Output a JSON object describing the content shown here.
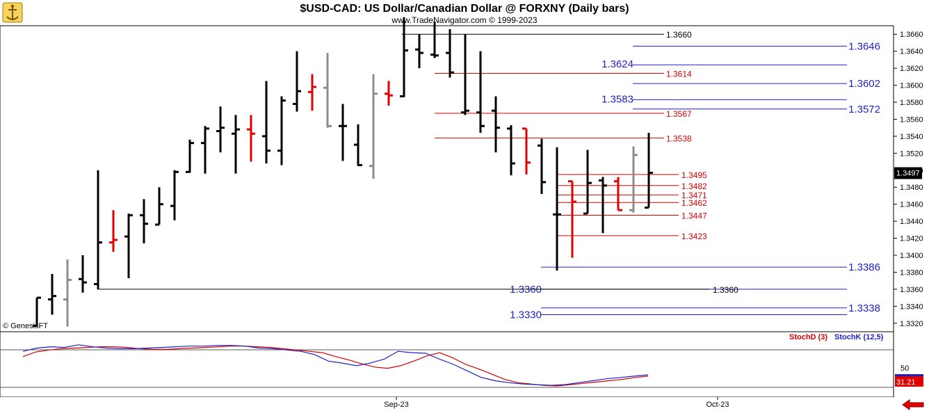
{
  "header": {
    "title": "$USD-CAD:  US Dollar/Canadian Dollar @ FORXNY  (Daily bars)",
    "subtitle": "www.TradeNavigator.com © 1999-2023",
    "watermark": "© GenesisFT"
  },
  "chart_data": [
    {
      "type": "ohlc",
      "title": "$USD-CAD:  US Dollar/Canadian Dollar @ FORXNY  (Daily bars)",
      "ylim": [
        1.331,
        1.367
      ],
      "y_ticks": [
        "1.3660",
        "1.3640",
        "1.3620",
        "1.3600",
        "1.3580",
        "1.3560",
        "1.3540",
        "1.3520",
        "1.3500",
        "1.3480",
        "1.3460",
        "1.3440",
        "1.3420",
        "1.3400",
        "1.3380",
        "1.3360",
        "1.3340",
        "1.3320"
      ],
      "last_price": "1.3497",
      "x_labels": [
        {
          "index": 23.5,
          "label": "Sep-23"
        },
        {
          "index": 44.5,
          "label": "Oct-23"
        }
      ],
      "bar_colors": {
        "black": "#000000",
        "red": "#e00000",
        "gray": "#8c8c8c"
      },
      "bars": [
        {
          "o": 1.3317,
          "h": 1.335,
          "l": 1.3316,
          "c": 1.335,
          "color": "black"
        },
        {
          "o": 1.3348,
          "h": 1.3378,
          "l": 1.333,
          "c": 1.3352,
          "color": "black"
        },
        {
          "o": 1.3348,
          "h": 1.3395,
          "l": 1.3316,
          "c": 1.3371,
          "color": "gray"
        },
        {
          "o": 1.3372,
          "h": 1.34,
          "l": 1.3356,
          "c": 1.3368,
          "color": "black"
        },
        {
          "o": 1.3366,
          "h": 1.35,
          "l": 1.336,
          "c": 1.3415,
          "color": "black"
        },
        {
          "o": 1.3415,
          "h": 1.3453,
          "l": 1.3404,
          "c": 1.3418,
          "color": "red"
        },
        {
          "o": 1.3422,
          "h": 1.3449,
          "l": 1.3373,
          "c": 1.3447,
          "color": "black"
        },
        {
          "o": 1.3447,
          "h": 1.3466,
          "l": 1.3414,
          "c": 1.3437,
          "color": "black"
        },
        {
          "o": 1.3436,
          "h": 1.348,
          "l": 1.3436,
          "c": 1.346,
          "color": "black"
        },
        {
          "o": 1.3458,
          "h": 1.35,
          "l": 1.3441,
          "c": 1.3498,
          "color": "black"
        },
        {
          "o": 1.3498,
          "h": 1.3536,
          "l": 1.3497,
          "c": 1.3532,
          "color": "black"
        },
        {
          "o": 1.3532,
          "h": 1.3552,
          "l": 1.3496,
          "c": 1.3549,
          "color": "black"
        },
        {
          "o": 1.3546,
          "h": 1.3575,
          "l": 1.3521,
          "c": 1.355,
          "color": "black"
        },
        {
          "o": 1.3543,
          "h": 1.3565,
          "l": 1.3496,
          "c": 1.3548,
          "color": "black"
        },
        {
          "o": 1.3548,
          "h": 1.3565,
          "l": 1.351,
          "c": 1.3543,
          "color": "red"
        },
        {
          "o": 1.354,
          "h": 1.3605,
          "l": 1.3508,
          "c": 1.3523,
          "color": "black"
        },
        {
          "o": 1.3523,
          "h": 1.3587,
          "l": 1.3506,
          "c": 1.3582,
          "color": "black"
        },
        {
          "o": 1.3578,
          "h": 1.364,
          "l": 1.3569,
          "c": 1.3593,
          "color": "black"
        },
        {
          "o": 1.3592,
          "h": 1.3613,
          "l": 1.357,
          "c": 1.3598,
          "color": "red"
        },
        {
          "o": 1.3597,
          "h": 1.3638,
          "l": 1.355,
          "c": 1.3552,
          "color": "gray"
        },
        {
          "o": 1.3552,
          "h": 1.3578,
          "l": 1.3511,
          "c": 1.3552,
          "color": "black"
        },
        {
          "o": 1.353,
          "h": 1.3554,
          "l": 1.3505,
          "c": 1.3506,
          "color": "black"
        },
        {
          "o": 1.3505,
          "h": 1.3613,
          "l": 1.349,
          "c": 1.359,
          "color": "gray"
        },
        {
          "o": 1.359,
          "h": 1.3605,
          "l": 1.3576,
          "c": 1.3588,
          "color": "red"
        },
        {
          "o": 1.3587,
          "h": 1.368,
          "l": 1.3586,
          "c": 1.3641,
          "color": "black"
        },
        {
          "o": 1.3642,
          "h": 1.366,
          "l": 1.362,
          "c": 1.3638,
          "color": "black"
        },
        {
          "o": 1.3636,
          "h": 1.3675,
          "l": 1.3632,
          "c": 1.3635,
          "color": "black"
        },
        {
          "o": 1.3638,
          "h": 1.3666,
          "l": 1.3609,
          "c": 1.3615,
          "color": "black"
        },
        {
          "o": 1.3568,
          "h": 1.366,
          "l": 1.3565,
          "c": 1.357,
          "color": "black"
        },
        {
          "o": 1.3568,
          "h": 1.364,
          "l": 1.3544,
          "c": 1.3552,
          "color": "black"
        },
        {
          "o": 1.357,
          "h": 1.3587,
          "l": 1.3521,
          "c": 1.355,
          "color": "black"
        },
        {
          "o": 1.3549,
          "h": 1.3553,
          "l": 1.3494,
          "c": 1.3508,
          "color": "black"
        },
        {
          "o": 1.3549,
          "h": 1.3549,
          "l": 1.3495,
          "c": 1.3509,
          "color": "red"
        },
        {
          "o": 1.3529,
          "h": 1.3537,
          "l": 1.3472,
          "c": 1.3486,
          "color": "black"
        },
        {
          "o": 1.3448,
          "h": 1.3527,
          "l": 1.3382,
          "c": 1.3448,
          "color": "black"
        },
        {
          "o": 1.3487,
          "h": 1.3487,
          "l": 1.3397,
          "c": 1.3463,
          "color": "red"
        },
        {
          "o": 1.3449,
          "h": 1.3524,
          "l": 1.3449,
          "c": 1.3485,
          "color": "black"
        },
        {
          "o": 1.3488,
          "h": 1.3492,
          "l": 1.3426,
          "c": 1.3482,
          "color": "black"
        },
        {
          "o": 1.3487,
          "h": 1.3492,
          "l": 1.3453,
          "c": 1.3453,
          "color": "red"
        },
        {
          "o": 1.3453,
          "h": 1.3528,
          "l": 1.345,
          "c": 1.3518,
          "color": "gray"
        },
        {
          "o": 1.3456,
          "h": 1.3544,
          "l": 1.3456,
          "c": 1.3497,
          "color": "black"
        }
      ],
      "levels": [
        {
          "value": 1.366,
          "label": "1.3660",
          "style": "black"
        },
        {
          "value": 1.3646,
          "label": "1.3646",
          "style": "blue"
        },
        {
          "value": 1.3624,
          "label": "1.3624",
          "style": "blue"
        },
        {
          "value": 1.3614,
          "label": "1.3614",
          "style": "red"
        },
        {
          "value": 1.3602,
          "label": "1.3602",
          "style": "blue"
        },
        {
          "value": 1.3583,
          "label": "1.3583",
          "style": "blue"
        },
        {
          "value": 1.3572,
          "label": "1.3572",
          "style": "blue"
        },
        {
          "value": 1.3567,
          "label": "1.3567",
          "style": "red"
        },
        {
          "value": 1.3538,
          "label": "1.3538",
          "style": "red"
        },
        {
          "value": 1.3495,
          "label": "1.3495",
          "style": "red"
        },
        {
          "value": 1.3482,
          "label": "1.3482",
          "style": "red"
        },
        {
          "value": 1.3471,
          "label": "1.3471",
          "style": "red"
        },
        {
          "value": 1.3462,
          "label": "1.3462",
          "style": "red"
        },
        {
          "value": 1.3447,
          "label": "1.3447",
          "style": "red"
        },
        {
          "value": 1.3423,
          "label": "1.3423",
          "style": "red"
        },
        {
          "value": 1.3386,
          "label": "1.3386",
          "style": "blue"
        },
        {
          "value": 1.336,
          "label": "1.3360",
          "style": "blue"
        },
        {
          "value": 1.336,
          "label": "1.3360",
          "style": "black"
        },
        {
          "value": 1.3338,
          "label": "1.3338",
          "style": "blue"
        },
        {
          "value": 1.333,
          "label": "1.3330",
          "style": "blue"
        }
      ]
    },
    {
      "type": "line",
      "ylim": [
        0,
        100
      ],
      "y_ticks": [
        "50"
      ],
      "last_value": "31.21",
      "series": [
        {
          "name": "StochD (3)",
          "color": "#d40000",
          "values": [
            62,
            69,
            72,
            74,
            75,
            76,
            77,
            77,
            76,
            74,
            73,
            73,
            74,
            75,
            76,
            77,
            78,
            78,
            77,
            76,
            74,
            72,
            70,
            68,
            62,
            57,
            51,
            46,
            44,
            48,
            55,
            63,
            68,
            60,
            50,
            43,
            35,
            27,
            22,
            20,
            18,
            17,
            19,
            21,
            23,
            25,
            27,
            30,
            32
          ]
        },
        {
          "name": "StochK (12,5)",
          "color": "#1f1fc8",
          "values": [
            70,
            75,
            77,
            76,
            80,
            77,
            75,
            74,
            74,
            75,
            76,
            77,
            78,
            78,
            79,
            79,
            78,
            75,
            74,
            72,
            70,
            65,
            55,
            52,
            48,
            52,
            58,
            70,
            68,
            67,
            58,
            50,
            40,
            30,
            25,
            22,
            20,
            19,
            18,
            19,
            22,
            25,
            28,
            30,
            32,
            34
          ]
        }
      ]
    }
  ]
}
